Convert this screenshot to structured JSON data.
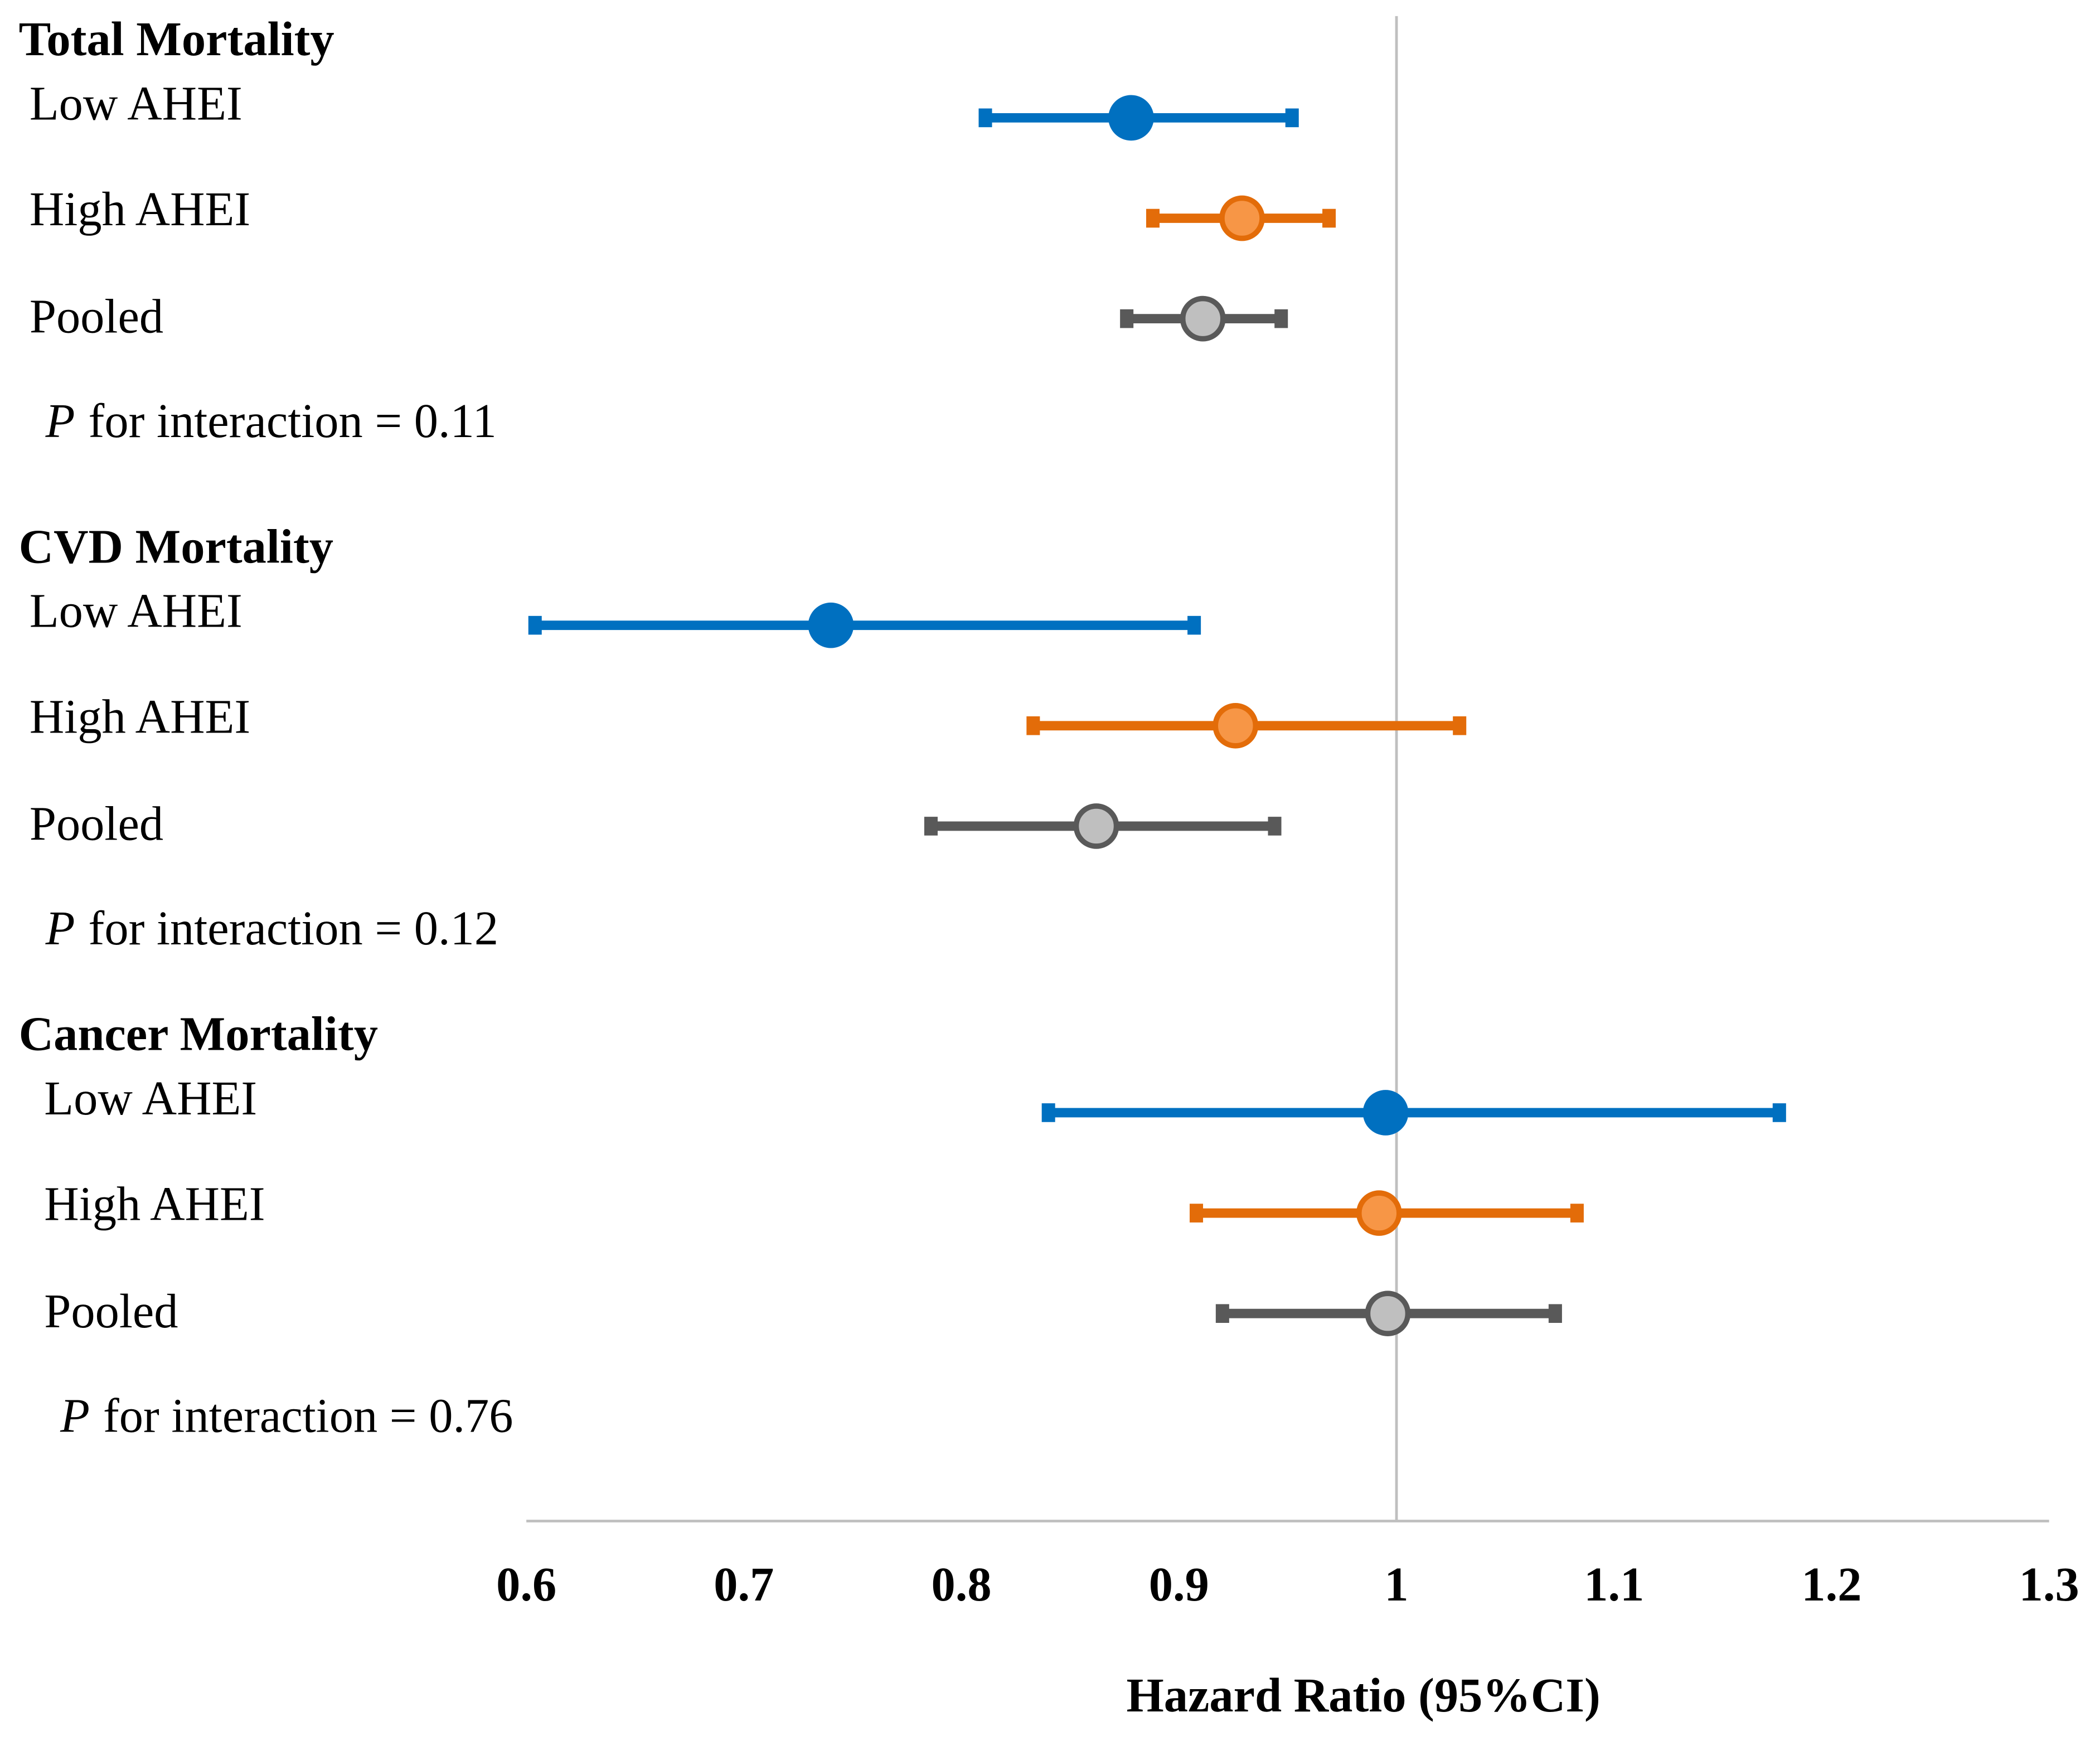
{
  "chart_data": {
    "type": "forest",
    "xlabel": "Hazard Ratio (95%CI)",
    "xlim": [
      0.6,
      1.3
    ],
    "xticks": [
      0.6,
      0.7,
      0.8,
      0.9,
      1,
      1.1,
      1.2,
      1.3
    ],
    "reference_line": 1,
    "series": [
      {
        "name": "Low AHEI",
        "color": "#0070c0",
        "fill": "#0070c0"
      },
      {
        "name": "High AHEI",
        "color": "#e36c09",
        "fill": "#f79646"
      },
      {
        "name": "Pooled",
        "color": "#595959",
        "fill": "#bfbfbf"
      }
    ],
    "groups": [
      {
        "title": "Total Mortality",
        "rows": [
          {
            "label": "Low AHEI",
            "estimate": 0.878,
            "lower": 0.811,
            "upper": 0.952
          },
          {
            "label": "High AHEI",
            "estimate": 0.929,
            "lower": 0.888,
            "upper": 0.969
          },
          {
            "label": "Pooled",
            "estimate": 0.911,
            "lower": 0.876,
            "upper": 0.947
          }
        ],
        "interaction": {
          "symbol": "P",
          "text": "for interaction = 0.11"
        }
      },
      {
        "title": "CVD Mortality",
        "rows": [
          {
            "label": "Low AHEI",
            "estimate": 0.74,
            "lower": 0.604,
            "upper": 0.907
          },
          {
            "label": "High AHEI",
            "estimate": 0.926,
            "lower": 0.833,
            "upper": 1.029
          },
          {
            "label": "Pooled",
            "estimate": 0.862,
            "lower": 0.786,
            "upper": 0.944
          }
        ],
        "interaction": {
          "symbol": "P",
          "text": "for interaction = 0.12"
        }
      },
      {
        "title": "Cancer Mortality",
        "rows": [
          {
            "label": "Low AHEI",
            "estimate": 0.995,
            "lower": 0.84,
            "upper": 1.176
          },
          {
            "label": "High AHEI",
            "estimate": 0.992,
            "lower": 0.908,
            "upper": 1.083
          },
          {
            "label": "Pooled",
            "estimate": 0.996,
            "lower": 0.92,
            "upper": 1.073
          }
        ],
        "interaction": {
          "symbol": "P",
          "text": "for interaction = 0.76"
        }
      }
    ]
  }
}
